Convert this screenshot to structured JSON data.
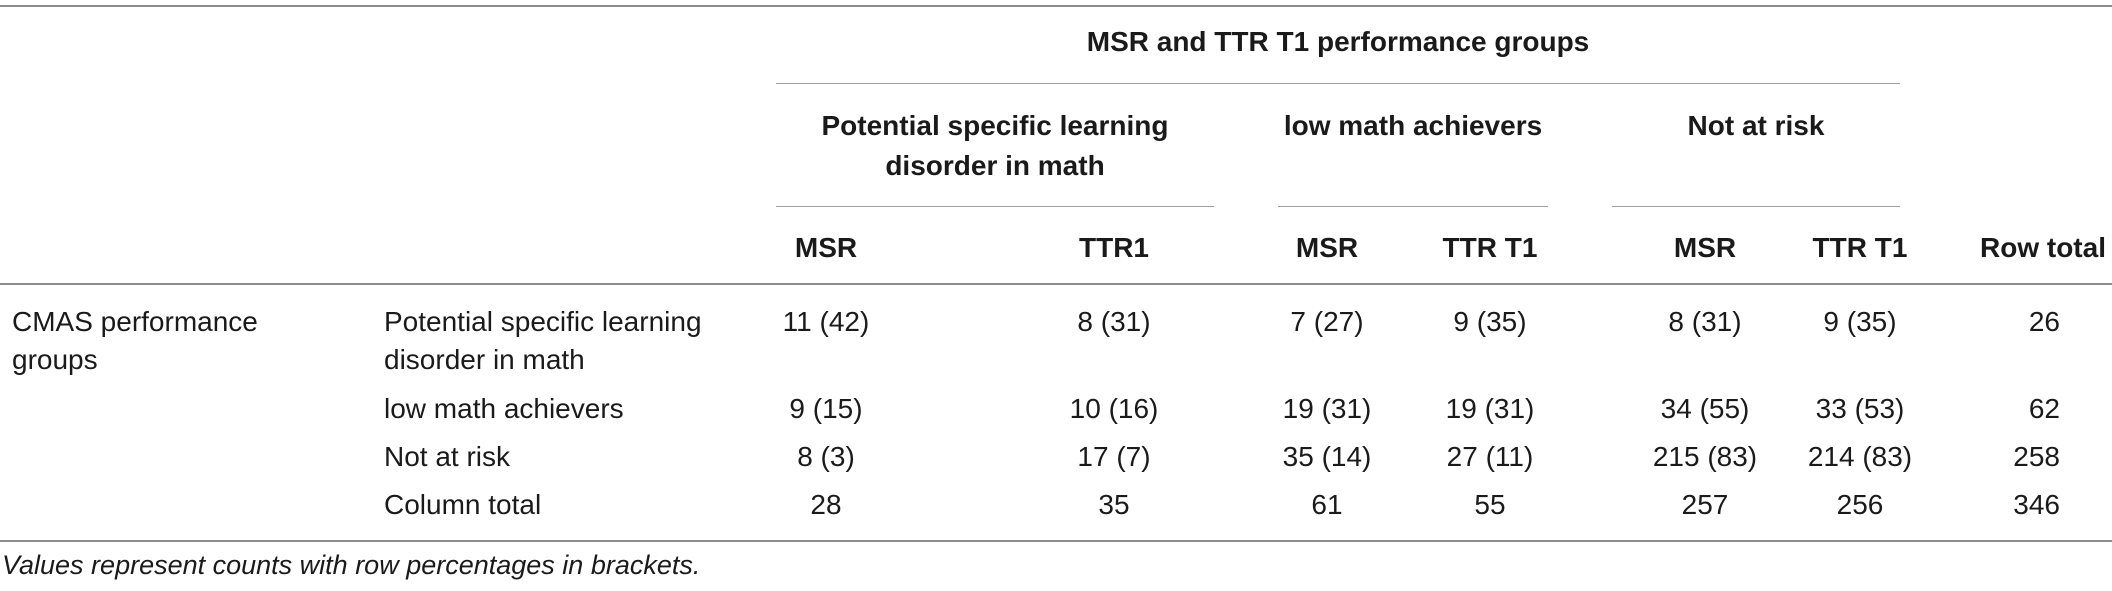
{
  "table": {
    "spanner": "MSR and TTR T1 performance groups",
    "groups": [
      "Potential specific learning disorder in math",
      "low math achievers",
      "Not at risk"
    ],
    "subheaders": [
      "MSR",
      "TTR1",
      "MSR",
      "TTR T1",
      "MSR",
      "TTR T1"
    ],
    "row_total_label": "Row total",
    "row_group_label": "CMAS performance groups",
    "rows": [
      {
        "label": "Potential specific learning disorder in math",
        "cells": [
          "11 (42)",
          "8 (31)",
          "7 (27)",
          "9 (35)",
          "8 (31)",
          "9 (35)"
        ],
        "total": "26"
      },
      {
        "label": "low math achievers",
        "cells": [
          "9 (15)",
          "10 (16)",
          "19 (31)",
          "19 (31)",
          "34 (55)",
          "33 (53)"
        ],
        "total": "62"
      },
      {
        "label": "Not at risk",
        "cells": [
          "8 (3)",
          "17 (7)",
          "35 (14)",
          "27 (11)",
          "215 (83)",
          "214 (83)"
        ],
        "total": "258"
      },
      {
        "label": "Column total",
        "cells": [
          "28",
          "35",
          "61",
          "55",
          "257",
          "256"
        ],
        "total": "346"
      }
    ],
    "footnote": "Values represent counts with row percentages in brackets."
  }
}
